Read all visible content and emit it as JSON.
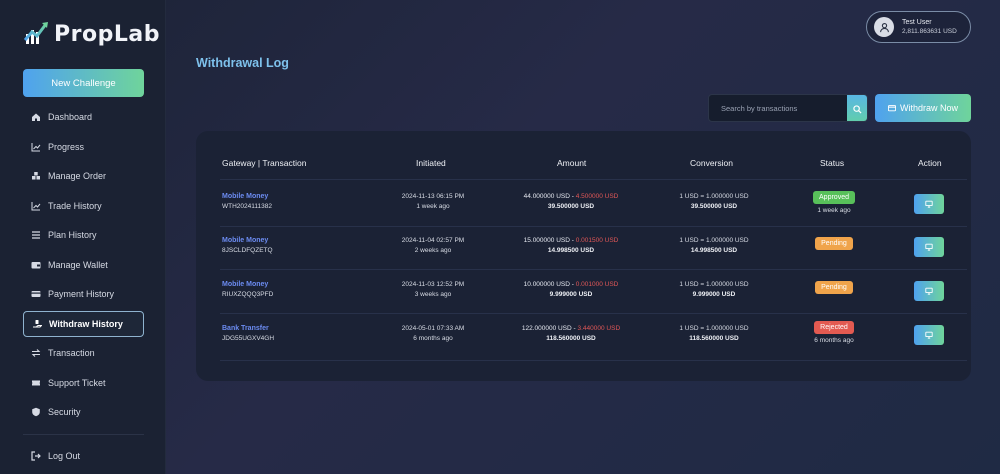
{
  "brand": {
    "name": "PropLab"
  },
  "sidebar": {
    "new_challenge": "New Challenge",
    "items": [
      {
        "label": "Dashboard",
        "icon": "home-icon",
        "active": false
      },
      {
        "label": "Progress",
        "icon": "chart-line-icon",
        "active": false
      },
      {
        "label": "Manage Order",
        "icon": "cubes-icon",
        "active": false
      },
      {
        "label": "Trade History",
        "icon": "chart-line-icon",
        "active": false
      },
      {
        "label": "Plan History",
        "icon": "list-icon",
        "active": false
      },
      {
        "label": "Manage Wallet",
        "icon": "wallet-icon",
        "active": false
      },
      {
        "label": "Payment History",
        "icon": "credit-card-icon",
        "active": false
      },
      {
        "label": "Withdraw History",
        "icon": "hand-money-icon",
        "active": true
      },
      {
        "label": "Transaction",
        "icon": "arrows-exchange-icon",
        "active": false
      },
      {
        "label": "Support Ticket",
        "icon": "ticket-icon",
        "active": false
      },
      {
        "label": "Security",
        "icon": "shield-icon",
        "active": false
      }
    ],
    "logout": "Log Out"
  },
  "user": {
    "name": "Test User",
    "balance": "2,811.863631 USD"
  },
  "page": {
    "title": "Withdrawal Log"
  },
  "search": {
    "placeholder": "Search by transactions"
  },
  "withdraw_now": "Withdraw Now",
  "table": {
    "headers": {
      "gateway": "Gateway | Transaction",
      "initiated": "Initiated",
      "amount": "Amount",
      "conversion": "Conversion",
      "status": "Status",
      "action": "Action"
    },
    "rows": [
      {
        "gateway": "Mobile Money",
        "trx": "WTH2024111382",
        "date": "2024-11-13 06:15 PM",
        "ago": "1 week ago",
        "amount": "44.000000 USD",
        "sep": " - ",
        "charge": "4.500000 USD",
        "net": "39.500000 USD",
        "rate": "1 USD = 1.000000 USD",
        "converted": "39.500000 USD",
        "status": "Approved",
        "status_type": "approved",
        "status_ago": "1 week ago"
      },
      {
        "gateway": "Mobile Money",
        "trx": "8JSCLDFQZETQ",
        "date": "2024-11-04 02:57 PM",
        "ago": "2 weeks ago",
        "amount": "15.000000 USD",
        "sep": " - ",
        "charge": "0.001500 USD",
        "net": "14.998500 USD",
        "rate": "1 USD = 1.000000 USD",
        "converted": "14.998500 USD",
        "status": "Pending",
        "status_type": "pending",
        "status_ago": ""
      },
      {
        "gateway": "Mobile Money",
        "trx": "RIUXZQQQ3PFD",
        "date": "2024-11-03 12:52 PM",
        "ago": "3 weeks ago",
        "amount": "10.000000 USD",
        "sep": " - ",
        "charge": "0.001000 USD",
        "net": "9.999000 USD",
        "rate": "1 USD = 1.000000 USD",
        "converted": "9.999000 USD",
        "status": "Pending",
        "status_type": "pending",
        "status_ago": ""
      },
      {
        "gateway": "Bank Transfer",
        "trx": "JDG55UGXV4GH",
        "date": "2024-05-01 07:33 AM",
        "ago": "6 months ago",
        "amount": "122.000000 USD",
        "sep": " - ",
        "charge": "3.440000 USD",
        "net": "118.560000 USD",
        "rate": "1 USD = 1.000000 USD",
        "converted": "118.560000 USD",
        "status": "Rejected",
        "status_type": "rejected",
        "status_ago": "6 months ago"
      }
    ]
  },
  "colors": {
    "accent_start": "#4fa2ef",
    "accent_end": "#6fd49b",
    "approved": "#58c05a",
    "pending": "#f0a44b",
    "rejected": "#e35a51",
    "charge": "#e05757",
    "link": "#6c8cf2",
    "title": "#7ec1ec"
  }
}
